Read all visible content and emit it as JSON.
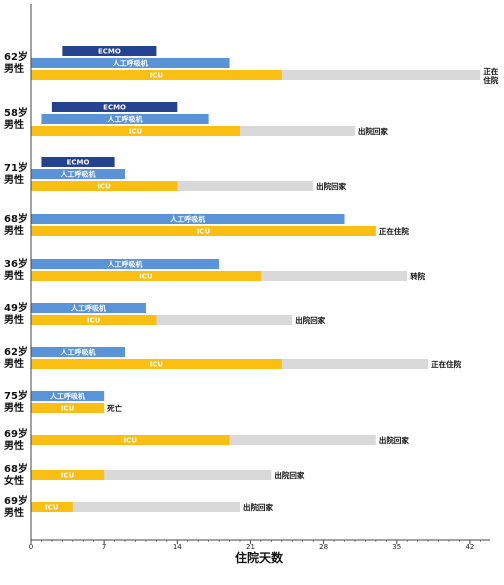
{
  "chart_data": {
    "type": "bar",
    "orientation": "horizontal",
    "xlabel": "住院天数",
    "xlim": [
      0,
      45
    ],
    "xticks": [
      0,
      7,
      14,
      21,
      28,
      35,
      42
    ],
    "grid": false,
    "colors": {
      "ecmo": "#24428f",
      "ventilator": "#5b93d8",
      "icu": "#fbbf13",
      "hospital": "#d9d9d9",
      "axis": "#444444"
    },
    "patients": [
      {
        "age": "62岁",
        "sex": "男性",
        "hospital_days": 43,
        "status_lines": [
          "正在",
          "住院"
        ],
        "bars": [
          {
            "label": "ECMO",
            "type": "ecmo",
            "start": 3,
            "end": 12
          },
          {
            "label": "人工呼吸机",
            "type": "ventilator",
            "start": 0,
            "end": 19
          },
          {
            "label": "ICU",
            "type": "icu",
            "start": 0,
            "end": 24
          }
        ]
      },
      {
        "age": "58岁",
        "sex": "男性",
        "hospital_days": 31,
        "status_lines": [
          "出院回家"
        ],
        "bars": [
          {
            "label": "ECMO",
            "type": "ecmo",
            "start": 2,
            "end": 14
          },
          {
            "label": "人工呼吸机",
            "type": "ventilator",
            "start": 1,
            "end": 17
          },
          {
            "label": "ICU",
            "type": "icu",
            "start": 0,
            "end": 20
          }
        ]
      },
      {
        "age": "71岁",
        "sex": "男性",
        "hospital_days": 27,
        "status_lines": [
          "出院回家"
        ],
        "bars": [
          {
            "label": "ECMO",
            "type": "ecmo",
            "start": 1,
            "end": 8
          },
          {
            "label": "人工呼吸机",
            "type": "ventilator",
            "start": 0,
            "end": 9
          },
          {
            "label": "ICU",
            "type": "icu",
            "start": 0,
            "end": 14
          }
        ]
      },
      {
        "age": "68岁",
        "sex": "男性",
        "hospital_days": 33,
        "status_lines": [
          "正在住院"
        ],
        "bars": [
          {
            "label": "人工呼吸机",
            "type": "ventilator",
            "start": 0,
            "end": 30
          },
          {
            "label": "ICU",
            "type": "icu",
            "start": 0,
            "end": 33
          }
        ]
      },
      {
        "age": "36岁",
        "sex": "男性",
        "hospital_days": 36,
        "status_lines": [
          "转院"
        ],
        "bars": [
          {
            "label": "人工呼吸机",
            "type": "ventilator",
            "start": 0,
            "end": 18
          },
          {
            "label": "ICU",
            "type": "icu",
            "start": 0,
            "end": 22
          }
        ]
      },
      {
        "age": "49岁",
        "sex": "男性",
        "hospital_days": 25,
        "status_lines": [
          "出院回家"
        ],
        "bars": [
          {
            "label": "人工呼吸机",
            "type": "ventilator",
            "start": 0,
            "end": 11
          },
          {
            "label": "ICU",
            "type": "icu",
            "start": 0,
            "end": 12
          }
        ]
      },
      {
        "age": "62岁",
        "sex": "男性",
        "hospital_days": 38,
        "status_lines": [
          "正在住院"
        ],
        "bars": [
          {
            "label": "人工呼吸机",
            "type": "ventilator",
            "start": 0,
            "end": 9
          },
          {
            "label": "ICU",
            "type": "icu",
            "start": 0,
            "end": 24
          }
        ]
      },
      {
        "age": "75岁",
        "sex": "男性",
        "hospital_days": 7,
        "status_lines": [
          "死亡"
        ],
        "bars": [
          {
            "label": "人工呼吸机",
            "type": "ventilator",
            "start": 0,
            "end": 7
          },
          {
            "label": "ICU",
            "type": "icu",
            "start": 0,
            "end": 7
          }
        ]
      },
      {
        "age": "69岁",
        "sex": "男性",
        "hospital_days": 33,
        "status_lines": [
          "出院回家"
        ],
        "bars": [
          {
            "label": "ICU",
            "type": "icu",
            "start": 0,
            "end": 19
          }
        ]
      },
      {
        "age": "68岁",
        "sex": "女性",
        "hospital_days": 23,
        "status_lines": [
          "出院回家"
        ],
        "bars": [
          {
            "label": "ICU",
            "type": "icu",
            "start": 0,
            "end": 7
          }
        ]
      },
      {
        "age": "69岁",
        "sex": "男性",
        "hospital_days": 20,
        "status_lines": [
          "出院回家"
        ],
        "bars": [
          {
            "label": "ICU",
            "type": "icu",
            "start": 0,
            "end": 4
          }
        ]
      }
    ]
  }
}
